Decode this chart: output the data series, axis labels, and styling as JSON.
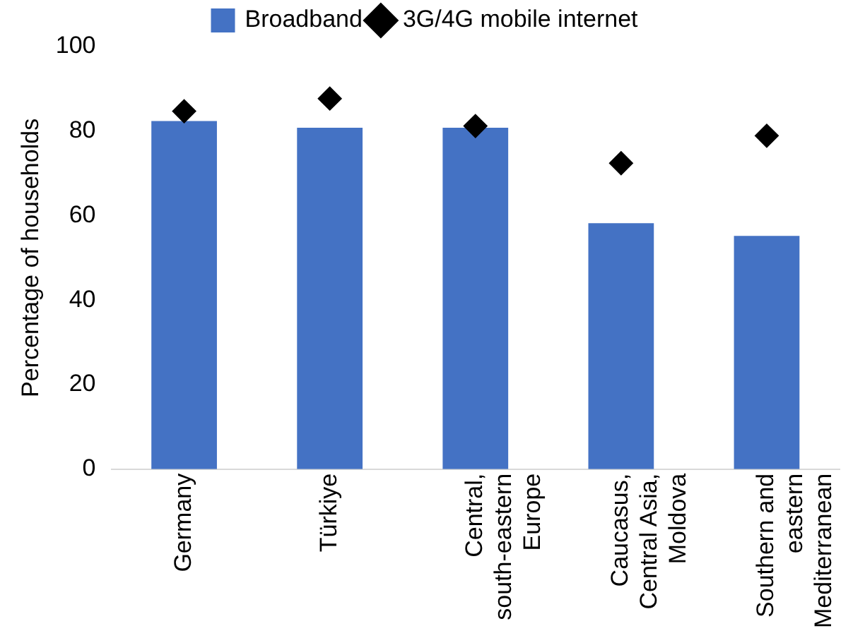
{
  "chart_data": {
    "type": "bar",
    "ylabel": "Percentage of households",
    "categories": [
      "Germany",
      "Türkiye",
      "Central, south-eastern Europe",
      "Caucasus, Central Asia, Moldova",
      "Southern and eastern Mediterranean"
    ],
    "series": [
      {
        "name": "Broadband",
        "color": "#4472c4",
        "values": [
          82.4,
          80.8,
          80.8,
          58.2,
          55.2
        ]
      },
      {
        "name": "3G/4G mobile internet",
        "type": "scatter",
        "color": "#000000",
        "marker": "diamond",
        "values": [
          84.7,
          87.7,
          81.2,
          72.4,
          78.9
        ]
      }
    ],
    "ylim": [
      0,
      100
    ],
    "yticks": [
      0,
      20,
      40,
      60,
      80,
      100
    ],
    "grid": false,
    "legend": "top"
  }
}
